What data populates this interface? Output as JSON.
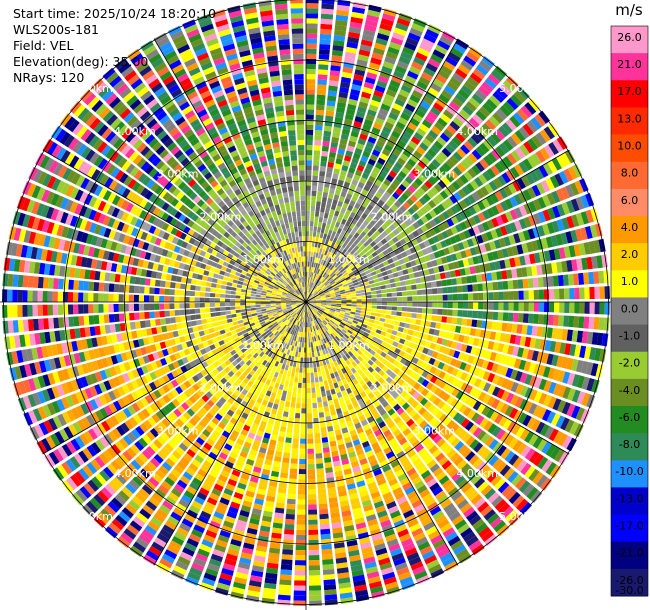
{
  "header": {
    "start_time": "Start time: 2025/10/24 18:20:10",
    "instrument": "WLS200s-181",
    "field": "Field: VEL",
    "elevation": "Elevation(deg): 35.00",
    "nrays": "NRays: 120"
  },
  "colorbar": {
    "unit": "m/s",
    "ticks": [
      "26.0",
      "21.0",
      "17.0",
      "13.0",
      "10.0",
      "8.0",
      "6.0",
      "4.0",
      "2.0",
      "1.0",
      "0.0",
      "-1.0",
      "-2.0",
      "-4.0",
      "-6.0",
      "-8.0",
      "-10.0",
      "-13.0",
      "-17.0",
      "-21.0",
      "-26.0",
      "-30.0"
    ],
    "colors": [
      "#ff99cc",
      "#ff3399",
      "#ff0000",
      "#ff2a00",
      "#ff4d00",
      "#ff6a33",
      "#ff8c66",
      "#ff9900",
      "#ffcc00",
      "#ffff00",
      "#808080",
      "#606060",
      "#99cc33",
      "#6b8e23",
      "#228b22",
      "#2e8b57",
      "#1e90ff",
      "#0000cd",
      "#0000ff",
      "#000080",
      "#191970"
    ]
  },
  "chart_data": {
    "type": "heatmap",
    "subtype": "ppi",
    "field": "VEL",
    "units": "m/s",
    "nrays": 120,
    "elevation_deg": 35.0,
    "range_rings_km": [
      1,
      2,
      3,
      4,
      5
    ],
    "ring_labels": [
      "1.00km",
      "2.00km",
      "3.00km",
      "4.00km",
      "5.00km"
    ],
    "vmin": -30.0,
    "vmax": 26.0
  }
}
